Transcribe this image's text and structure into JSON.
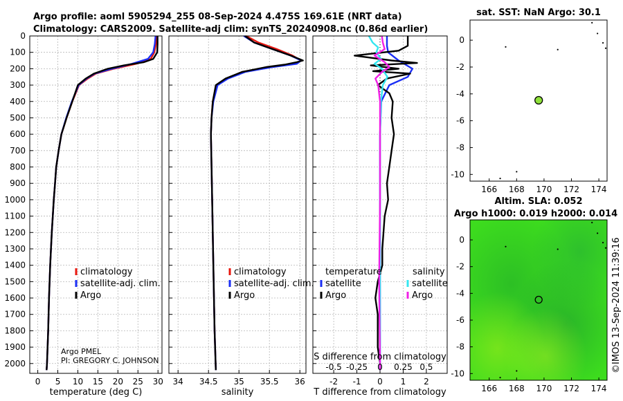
{
  "header": {
    "line1": "Argo profile: aoml 5905294_255 08-Sep-2024 4.475S 169.61E (NRT data)",
    "line2": "Climatology: CARS2009. Satellite-adj clim: synTS_20240908.nc (0.86d earlier)"
  },
  "timestamp": "©IMOS 13-Sep-2024 11:39:16",
  "colors": {
    "climatology": "#e8150c",
    "satellite": "#1a2ef5",
    "argo": "#000000",
    "sat_cyan": "#33e6f0",
    "argo_magenta": "#f020e6",
    "map_green": "#3ddc1e"
  },
  "chart_data": [
    {
      "type": "line",
      "id": "temperature",
      "xlabel": "temperature (deg C)",
      "ylabel": "",
      "xlim": [
        -2,
        31
      ],
      "ylim": [
        2060,
        0
      ],
      "xticks": [
        "0",
        "5",
        "10",
        "15",
        "20",
        "25",
        "30"
      ],
      "xtick_values": [
        0,
        5,
        10,
        15,
        20,
        25,
        30
      ],
      "yticks": [
        "0",
        "100",
        "200",
        "300",
        "400",
        "500",
        "600",
        "700",
        "800",
        "900",
        "1000",
        "1100",
        "1200",
        "1300",
        "1400",
        "1500",
        "1600",
        "1700",
        "1800",
        "1900",
        "2000"
      ],
      "ytick_values": [
        0,
        100,
        200,
        300,
        400,
        500,
        600,
        700,
        800,
        900,
        1000,
        1100,
        1200,
        1300,
        1400,
        1500,
        1600,
        1700,
        1800,
        1900,
        2000
      ],
      "legend": [
        "climatology",
        "satellite-adj. clim.",
        "Argo"
      ],
      "annotation": [
        "Argo PMEL",
        "PI: GREGORY C. JOHNSON"
      ],
      "series": [
        {
          "name": "climatology",
          "depth": [
            0,
            50,
            100,
            140,
            170,
            200,
            230,
            260,
            300,
            400,
            500,
            600,
            700,
            800,
            900,
            1000,
            1200,
            1400,
            1600,
            1800,
            2000,
            2040
          ],
          "values": [
            29.6,
            29.5,
            29.1,
            28.2,
            24.5,
            19,
            14.5,
            12.5,
            10.3,
            8.6,
            7.2,
            5.9,
            5.2,
            4.6,
            4.3,
            4.0,
            3.5,
            3.1,
            2.8,
            2.6,
            2.3,
            2.2
          ]
        },
        {
          "name": "satellite-adj. clim.",
          "depth": [
            0,
            50,
            100,
            140,
            170,
            200,
            230,
            260,
            300,
            400,
            500,
            600,
            700,
            800,
            900,
            1000,
            1200,
            1400,
            1600,
            1800,
            2000,
            2040
          ],
          "values": [
            29.4,
            29.2,
            28.8,
            27.5,
            23.5,
            18.5,
            14.2,
            12.2,
            10.2,
            8.5,
            7.1,
            5.9,
            5.2,
            4.6,
            4.3,
            4.0,
            3.5,
            3.1,
            2.8,
            2.6,
            2.3,
            2.2
          ]
        },
        {
          "name": "Argo",
          "depth": [
            0,
            50,
            100,
            140,
            160,
            180,
            200,
            230,
            260,
            300,
            400,
            500,
            600,
            700,
            800,
            900,
            1000,
            1200,
            1400,
            1600,
            1800,
            2000,
            2040
          ],
          "values": [
            29.9,
            29.9,
            29.8,
            28.8,
            26.5,
            21.5,
            17.5,
            14,
            12,
            10,
            8.6,
            7.2,
            5.9,
            5.2,
            4.6,
            4.3,
            4.0,
            3.5,
            3.1,
            2.8,
            2.6,
            2.3,
            2.2
          ]
        }
      ]
    },
    {
      "type": "line",
      "id": "salinity",
      "xlabel": "salinity",
      "xlim": [
        33.85,
        36.1
      ],
      "ylim": [
        2060,
        0
      ],
      "xticks": [
        "34",
        "34.5",
        "35",
        "35.5",
        "36"
      ],
      "xtick_values": [
        34,
        34.5,
        35,
        35.5,
        36
      ],
      "legend": [
        "climatology",
        "satellite-adj. clim.",
        "Argo"
      ],
      "series": [
        {
          "name": "climatology",
          "depth": [
            0,
            40,
            80,
            120,
            150,
            170,
            190,
            220,
            260,
            300,
            400,
            500,
            600,
            800,
            1000,
            1400,
            1800,
            2040
          ],
          "values": [
            35.12,
            35.32,
            35.62,
            35.88,
            36.02,
            35.92,
            35.5,
            35.05,
            34.8,
            34.63,
            34.57,
            34.55,
            34.54,
            34.55,
            34.56,
            34.58,
            34.6,
            34.62
          ]
        },
        {
          "name": "satellite-adj. clim.",
          "depth": [
            0,
            40,
            80,
            120,
            150,
            170,
            190,
            220,
            260,
            300,
            400,
            500,
            600,
            800,
            1000,
            1400,
            1800,
            2040
          ],
          "values": [
            35.08,
            35.25,
            35.55,
            35.85,
            36.02,
            35.95,
            35.55,
            35.1,
            34.82,
            34.65,
            34.58,
            34.55,
            34.54,
            34.55,
            34.56,
            34.58,
            34.6,
            34.62
          ]
        },
        {
          "name": "Argo",
          "depth": [
            0,
            40,
            80,
            120,
            150,
            160,
            175,
            190,
            220,
            260,
            300,
            400,
            500,
            600,
            800,
            1000,
            1400,
            1800,
            2040
          ],
          "values": [
            35.1,
            35.25,
            35.55,
            35.85,
            36.05,
            35.95,
            35.75,
            35.45,
            35.05,
            34.78,
            34.62,
            34.57,
            34.55,
            34.54,
            34.55,
            34.56,
            34.58,
            34.6,
            34.62
          ]
        }
      ]
    },
    {
      "type": "line",
      "id": "differences",
      "xlabel": "T difference from climatology",
      "top_axis_label": "S difference from climatology",
      "xlim": [
        -2.9,
        2.9
      ],
      "ylim": [
        2060,
        0
      ],
      "xticks": [
        "-2",
        "-1",
        "0",
        "1",
        "2"
      ],
      "xtick_values": [
        -2,
        -1,
        0,
        1,
        2
      ],
      "top_ticks": [
        "-0.5",
        "-0.25",
        "0",
        "0.25",
        "0.5"
      ],
      "top_tick_values": [
        -0.5,
        -0.25,
        0,
        0.25,
        0.5
      ],
      "legend_temperature": {
        "title": "temperature",
        "items": [
          "satellite",
          "Argo"
        ]
      },
      "legend_salinity": {
        "title": "salinity",
        "items": [
          "satellite",
          "Argo"
        ]
      },
      "series": [
        {
          "name": "temperature satellite",
          "depth": [
            0,
            60,
            100,
            150,
            200,
            250,
            300,
            400,
            600,
            800,
            1000,
            1500,
            2000,
            2040
          ],
          "values": [
            0.3,
            0.3,
            0.35,
            0.8,
            1.4,
            1.2,
            0.4,
            0.05,
            0,
            0,
            0,
            0,
            0,
            0
          ]
        },
        {
          "name": "temperature Argo",
          "depth": [
            0,
            60,
            90,
            120,
            150,
            165,
            180,
            200,
            215,
            230,
            260,
            300,
            350,
            400,
            500,
            600,
            700,
            800,
            900,
            1000,
            1100,
            1200,
            1300,
            1400,
            1500,
            1600,
            1700,
            1800,
            1900,
            2000,
            2040
          ],
          "values": [
            1.2,
            1.2,
            0.8,
            -1.1,
            0.5,
            1.6,
            -0.4,
            0.8,
            -0.3,
            1.3,
            0.3,
            -0.1,
            0.4,
            0.55,
            0.5,
            0.6,
            0.5,
            0.4,
            0.3,
            0.35,
            0.2,
            0.15,
            0.1,
            0.1,
            -0.1,
            -0.2,
            -0.1,
            -0.1,
            -0.1,
            0,
            0
          ]
        },
        {
          "name": "salinity satellite",
          "depth": [
            0,
            40,
            70,
            100,
            140,
            170,
            200,
            250,
            300,
            400,
            600,
            1000,
            1500,
            2000,
            2040
          ],
          "values": [
            -0.12,
            -0.08,
            -0.02,
            -0.04,
            0.01,
            -0.06,
            0.02,
            0.08,
            0.03,
            0.01,
            0,
            0,
            0,
            0,
            0
          ]
        },
        {
          "name": "salinity Argo",
          "depth": [
            0,
            40,
            80,
            120,
            160,
            190,
            220,
            260,
            300,
            400,
            600,
            1000,
            1500,
            2000,
            2040
          ],
          "values": [
            0.02,
            0.03,
            0.05,
            -0.06,
            0.05,
            0.1,
            0.02,
            -0.05,
            -0.02,
            0,
            0,
            0,
            -0.01,
            0,
            0
          ]
        }
      ]
    },
    {
      "type": "heatmap",
      "id": "sst_map",
      "title": "sat. SST: NaN Argo: 30.1",
      "xlim": [
        164.6,
        174.6
      ],
      "ylim": [
        -10.5,
        1.5
      ],
      "xticks": [
        "166",
        "168",
        "170",
        "172",
        "174"
      ],
      "xtick_values": [
        166,
        168,
        170,
        172,
        174
      ],
      "yticks": [
        "0",
        "-2",
        "-4",
        "-6",
        "-8",
        "-10"
      ],
      "ytick_values": [
        0,
        -2,
        -4,
        -6,
        -8,
        -10
      ],
      "argo_position": {
        "lon": 169.61,
        "lat": -4.475
      }
    },
    {
      "type": "heatmap",
      "id": "sla_map",
      "title": "Altim. SLA: 0.052",
      "subtitle": "Argo h1000: 0.019 h2000: 0.014",
      "xlim": [
        164.6,
        174.6
      ],
      "ylim": [
        -10.5,
        1.5
      ],
      "xticks": [
        "166",
        "168",
        "170",
        "172",
        "174"
      ],
      "xtick_values": [
        166,
        168,
        170,
        172,
        174
      ],
      "yticks": [
        "0",
        "-2",
        "-4",
        "-6",
        "-8",
        "-10"
      ],
      "ytick_values": [
        0,
        -2,
        -4,
        -6,
        -8,
        -10
      ],
      "argo_position": {
        "lon": 169.61,
        "lat": -4.475
      }
    }
  ]
}
